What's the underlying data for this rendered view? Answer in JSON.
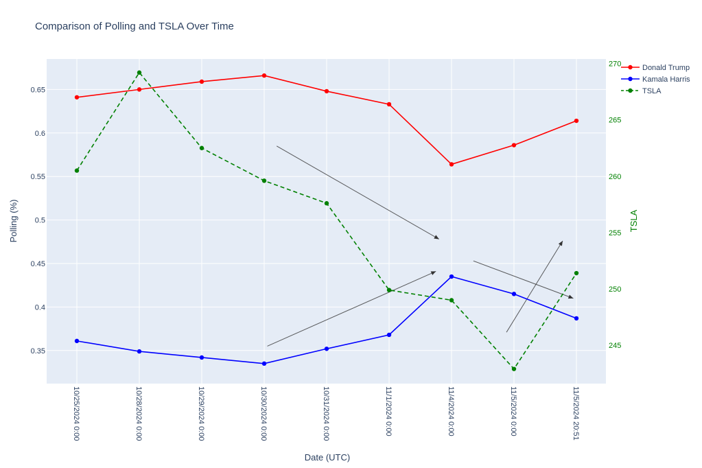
{
  "chart_data": {
    "type": "line",
    "title": "Comparison of Polling and TSLA Over Time",
    "xlabel": "Date (UTC)",
    "ylabel": "Polling (%)",
    "y2label": "TSLA",
    "categories": [
      "10/25/2024 0:00",
      "10/28/2024 0:00",
      "10/29/2024 0:00",
      "10/30/2024 0:00",
      "10/31/2024 0:00",
      "11/1/2024 0:00",
      "11/4/2024 0:00",
      "11/5/2024 0:00",
      "11/5/2024 20:51"
    ],
    "ylim": [
      0.312,
      0.685
    ],
    "y2lim": [
      241.6,
      270.4
    ],
    "yticks": [
      "0.35",
      "0.4",
      "0.45",
      "0.5",
      "0.55",
      "0.6",
      "0.65"
    ],
    "yticks_values": [
      0.35,
      0.4,
      0.45,
      0.5,
      0.55,
      0.6,
      0.65
    ],
    "y2ticks": [
      "245",
      "250",
      "255",
      "260",
      "265",
      "270"
    ],
    "y2ticks_values": [
      245,
      250,
      255,
      260,
      265,
      270
    ],
    "grid": true,
    "legend_position": "top-right",
    "series": [
      {
        "name": "Donald Trump",
        "axis": "y",
        "color": "#ff0000",
        "dash": "solid",
        "values": [
          0.641,
          0.65,
          0.659,
          0.666,
          0.648,
          0.633,
          0.564,
          0.586,
          0.614
        ]
      },
      {
        "name": "Kamala Harris",
        "axis": "y",
        "color": "#0000ff",
        "dash": "solid",
        "values": [
          0.361,
          0.349,
          0.342,
          0.335,
          0.352,
          0.368,
          0.435,
          0.415,
          0.387
        ]
      },
      {
        "name": "TSLA",
        "axis": "y2",
        "color": "#008000",
        "dash": "dash",
        "values": [
          260.5,
          269.2,
          262.5,
          259.6,
          257.6,
          249.9,
          249.0,
          242.9,
          251.4
        ]
      }
    ],
    "annotations": [
      {
        "name": "arrow-1",
        "from": [
          3.2,
          0.585
        ],
        "to": [
          5.8,
          0.478
        ],
        "color": "#333333"
      },
      {
        "name": "arrow-2",
        "from": [
          3.05,
          0.355
        ],
        "to": [
          5.75,
          0.441
        ],
        "color": "#333333"
      },
      {
        "name": "arrow-3",
        "from": [
          6.35,
          0.453
        ],
        "to": [
          7.95,
          0.41
        ],
        "color": "#333333"
      },
      {
        "name": "arrow-4",
        "from": [
          6.88,
          0.371
        ],
        "to": [
          7.78,
          0.476
        ],
        "color": "#333333"
      }
    ]
  }
}
